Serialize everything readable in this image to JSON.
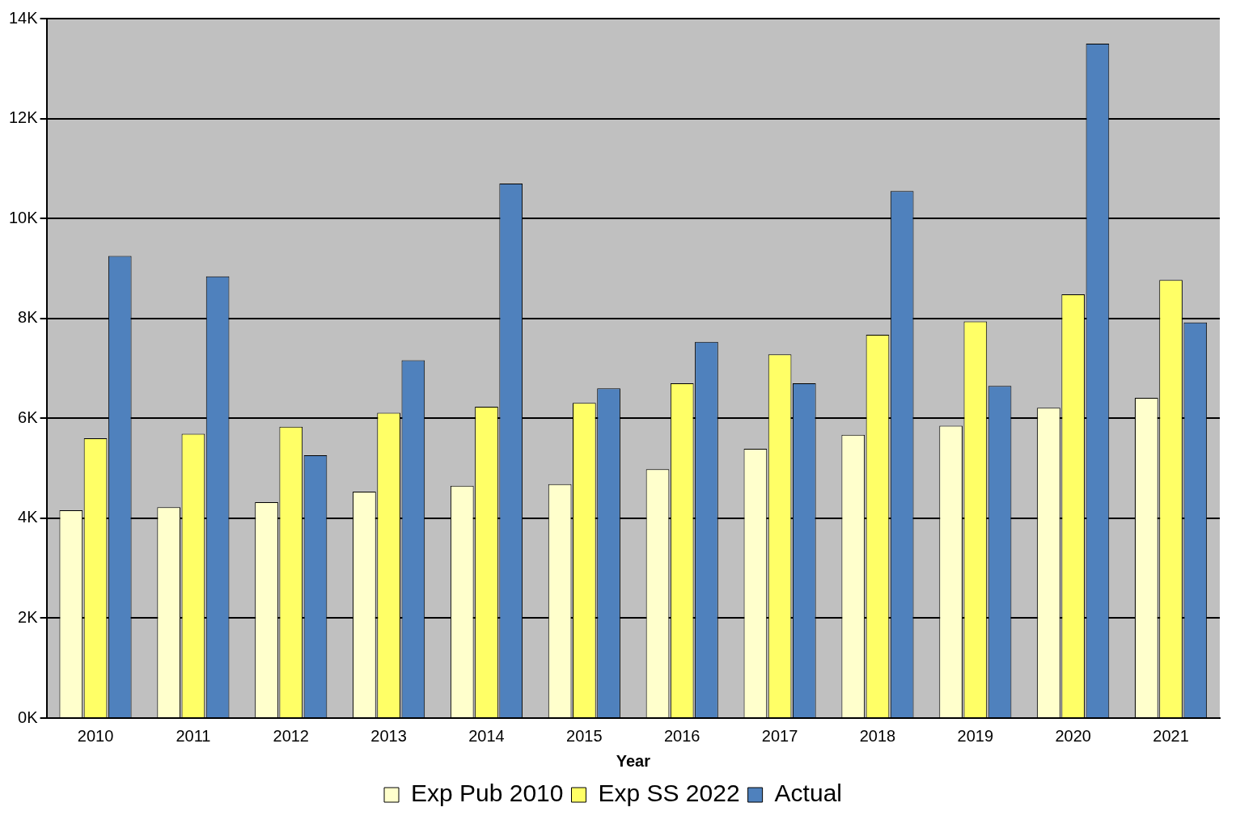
{
  "chart_data": {
    "type": "bar",
    "xlabel": "Year",
    "categories": [
      "2010",
      "2011",
      "2012",
      "2013",
      "2014",
      "2015",
      "2016",
      "2017",
      "2018",
      "2019",
      "2020",
      "2021"
    ],
    "series": [
      {
        "name": "Exp Pub 2010",
        "color": "#ffffcc",
        "values": [
          4160,
          4220,
          4320,
          4530,
          4650,
          4680,
          4980,
          5390,
          5670,
          5850,
          6210,
          6410
        ]
      },
      {
        "name": "Exp SS 2022",
        "color": "#ffff66",
        "values": [
          5600,
          5690,
          5830,
          6110,
          6230,
          6310,
          6700,
          7280,
          7670,
          7940,
          8480,
          8770
        ]
      },
      {
        "name": "Actual",
        "color": "#4f81bd",
        "values": [
          9250,
          8840,
          5260,
          7160,
          10700,
          6600,
          7530,
          6700,
          10550,
          6650,
          13500,
          7920
        ]
      }
    ],
    "ylim": [
      0,
      14000
    ],
    "yticks": [
      {
        "value": 0,
        "label": "0K"
      },
      {
        "value": 2000,
        "label": "2K"
      },
      {
        "value": 4000,
        "label": "4K"
      },
      {
        "value": 6000,
        "label": "6K"
      },
      {
        "value": 8000,
        "label": "8K"
      },
      {
        "value": 10000,
        "label": "10K"
      },
      {
        "value": 12000,
        "label": "12K"
      },
      {
        "value": 14000,
        "label": "14K"
      }
    ],
    "grid": "y",
    "legend": "bottom"
  }
}
